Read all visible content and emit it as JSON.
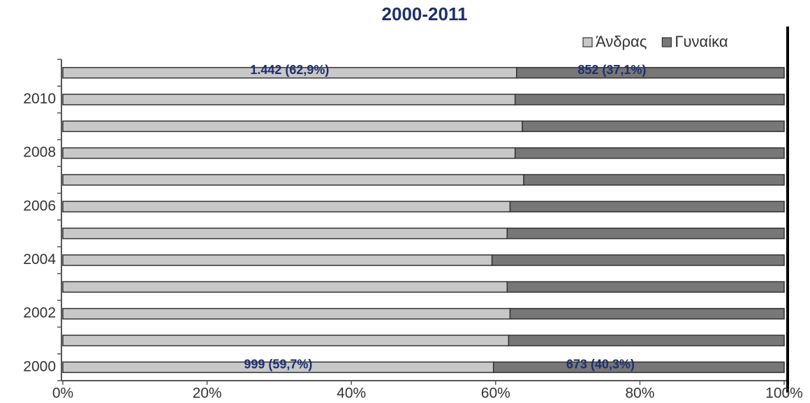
{
  "chart_data": {
    "type": "stacked_barh",
    "title": "2000-2011",
    "categories": [
      "2000",
      null,
      "2002",
      null,
      "2004",
      null,
      "2006",
      null,
      "2008",
      null,
      "2010",
      null
    ],
    "series": [
      {
        "name": "Άνδρας",
        "color": "#c8c8c8",
        "values": [
          59.7,
          61.8,
          62.0,
          61.6,
          59.5,
          61.6,
          62.0,
          63.9,
          62.7,
          63.7,
          62.7,
          62.9
        ],
        "value_labels": [
          "999 (59,7%)",
          null,
          null,
          null,
          null,
          null,
          null,
          null,
          null,
          null,
          null,
          "1.442 (62,9%)"
        ]
      },
      {
        "name": "Γυναίκα",
        "color": "#777777",
        "values": [
          40.3,
          38.2,
          38.0,
          38.4,
          40.5,
          38.4,
          38.0,
          36.1,
          37.3,
          36.3,
          37.3,
          37.1
        ],
        "value_labels": [
          "673 (40,3%)",
          null,
          null,
          null,
          null,
          null,
          null,
          null,
          null,
          null,
          null,
          "852 (37,1%)"
        ]
      }
    ],
    "xlim": [
      0,
      100
    ],
    "xticks": [
      {
        "value": 0,
        "label": "0%"
      },
      {
        "value": 20,
        "label": "20%"
      },
      {
        "value": 40,
        "label": "40%"
      },
      {
        "value": 60,
        "label": "60%"
      },
      {
        "value": 80,
        "label": "80%"
      },
      {
        "value": 100,
        "label": "100%"
      }
    ]
  }
}
